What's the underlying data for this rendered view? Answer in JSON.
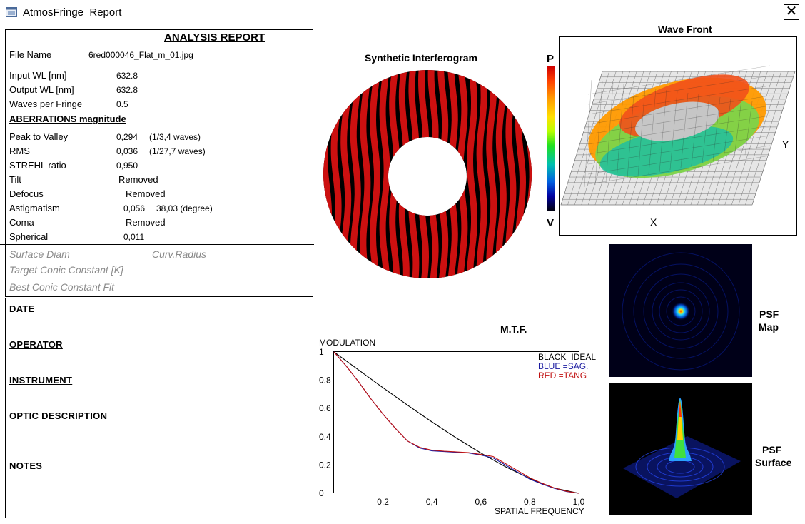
{
  "window": {
    "title": "AtmosFringe  Report",
    "close_label": "✕"
  },
  "report": {
    "title": "ANALYSIS  REPORT",
    "file_name_label": "File Name",
    "file_name_value": "6red000046_Flat_m_01.jpg",
    "input_wl_label": "Input  WL [nm]",
    "input_wl_value": "632.8",
    "output_wl_label": "Output WL [nm]",
    "output_wl_value": "632.8",
    "waves_label": "Waves per Fringe",
    "waves_value": "0.5",
    "aberrations_header": "ABERRATIONS magnitude",
    "pv_label": "Peak to Valley",
    "pv_value": "0,294",
    "pv_waves": "(1/3,4 waves)",
    "rms_label": "RMS",
    "rms_value": "0,036",
    "rms_waves": "(1/27,7 waves)",
    "strehl_label": "STREHL ratio",
    "strehl_value": "0,950",
    "tilt_label": "Tilt",
    "tilt_value": "Removed",
    "defocus_label": "Defocus",
    "defocus_value": "Removed",
    "astig_label": "Astigmatism",
    "astig_value": "0,056",
    "astig_angle": "38,03  (degree)",
    "coma_label": "Coma",
    "coma_value": "Removed",
    "spherical_label": "Spherical",
    "spherical_value": "0,011",
    "surface_diam": "Surface Diam",
    "curv_radius": "Curv.Radius",
    "target_conic": "Target Conic Constant [K]",
    "best_conic": "Best Conic Constant Fit"
  },
  "notes": {
    "date": "DATE",
    "operator": "OPERATOR",
    "instrument": "INSTRUMENT",
    "optic": "OPTIC DESCRIPTION",
    "notes": "NOTES"
  },
  "interferogram": {
    "title": "Synthetic Interferogram",
    "fringe_color": "#cc1010"
  },
  "wavefront": {
    "title": "Wave Front",
    "scale_top": "P",
    "scale_bottom": "V",
    "axis_x": "X",
    "axis_y": "Y"
  },
  "psf": {
    "map_label_1": "PSF",
    "map_label_2": "Map",
    "surface_label_1": "PSF",
    "surface_label_2": "Surface"
  },
  "mtf": {
    "title": "M.T.F.",
    "ylabel": "MODULATION",
    "xlabel": "SPATIAL FREQUENCY",
    "legend": [
      {
        "text": "BLACK=IDEAL",
        "color": "#000000"
      },
      {
        "text": "BLUE   =SAG.",
        "color": "#1a1aa0"
      },
      {
        "text": "RED    =TANG",
        "color": "#c01010"
      }
    ],
    "x_ticks": [
      "0,2",
      "0,4",
      "0,6",
      "0,8",
      "1,0"
    ],
    "y_ticks": [
      "1",
      "0.8",
      "0.6",
      "0.4",
      "0.2",
      "0"
    ]
  },
  "chart_data": {
    "type": "line",
    "title": "M.T.F.",
    "xlabel": "SPATIAL FREQUENCY",
    "ylabel": "MODULATION",
    "xlim": [
      0,
      1.0
    ],
    "ylim": [
      0,
      1.0
    ],
    "grid": false,
    "legend_position": "top-right",
    "series": [
      {
        "name": "BLACK=IDEAL",
        "color": "#000000",
        "x": [
          0,
          0.1,
          0.2,
          0.3,
          0.4,
          0.5,
          0.6,
          0.7,
          0.8,
          0.9,
          1.0
        ],
        "y": [
          1.0,
          0.873,
          0.747,
          0.624,
          0.505,
          0.391,
          0.285,
          0.188,
          0.104,
          0.037,
          0.0
        ]
      },
      {
        "name": "BLUE   =SAG.",
        "color": "#1a1aa0",
        "x": [
          0,
          0.05,
          0.1,
          0.15,
          0.2,
          0.25,
          0.3,
          0.35,
          0.4,
          0.45,
          0.5,
          0.55,
          0.6,
          0.65,
          0.7,
          0.75,
          0.8,
          0.85,
          0.9,
          0.95,
          1.0
        ],
        "y": [
          1.0,
          0.9,
          0.79,
          0.67,
          0.56,
          0.46,
          0.37,
          0.32,
          0.3,
          0.295,
          0.29,
          0.285,
          0.27,
          0.25,
          0.2,
          0.15,
          0.1,
          0.065,
          0.035,
          0.012,
          0.0
        ]
      },
      {
        "name": "RED    =TANG",
        "color": "#c01010",
        "x": [
          0,
          0.05,
          0.1,
          0.15,
          0.2,
          0.25,
          0.3,
          0.35,
          0.4,
          0.45,
          0.5,
          0.55,
          0.6,
          0.65,
          0.7,
          0.75,
          0.8,
          0.85,
          0.9,
          0.95,
          1.0
        ],
        "y": [
          1.0,
          0.9,
          0.79,
          0.67,
          0.56,
          0.46,
          0.37,
          0.325,
          0.305,
          0.298,
          0.293,
          0.288,
          0.275,
          0.26,
          0.21,
          0.16,
          0.11,
          0.07,
          0.038,
          0.014,
          0.0
        ]
      }
    ]
  }
}
